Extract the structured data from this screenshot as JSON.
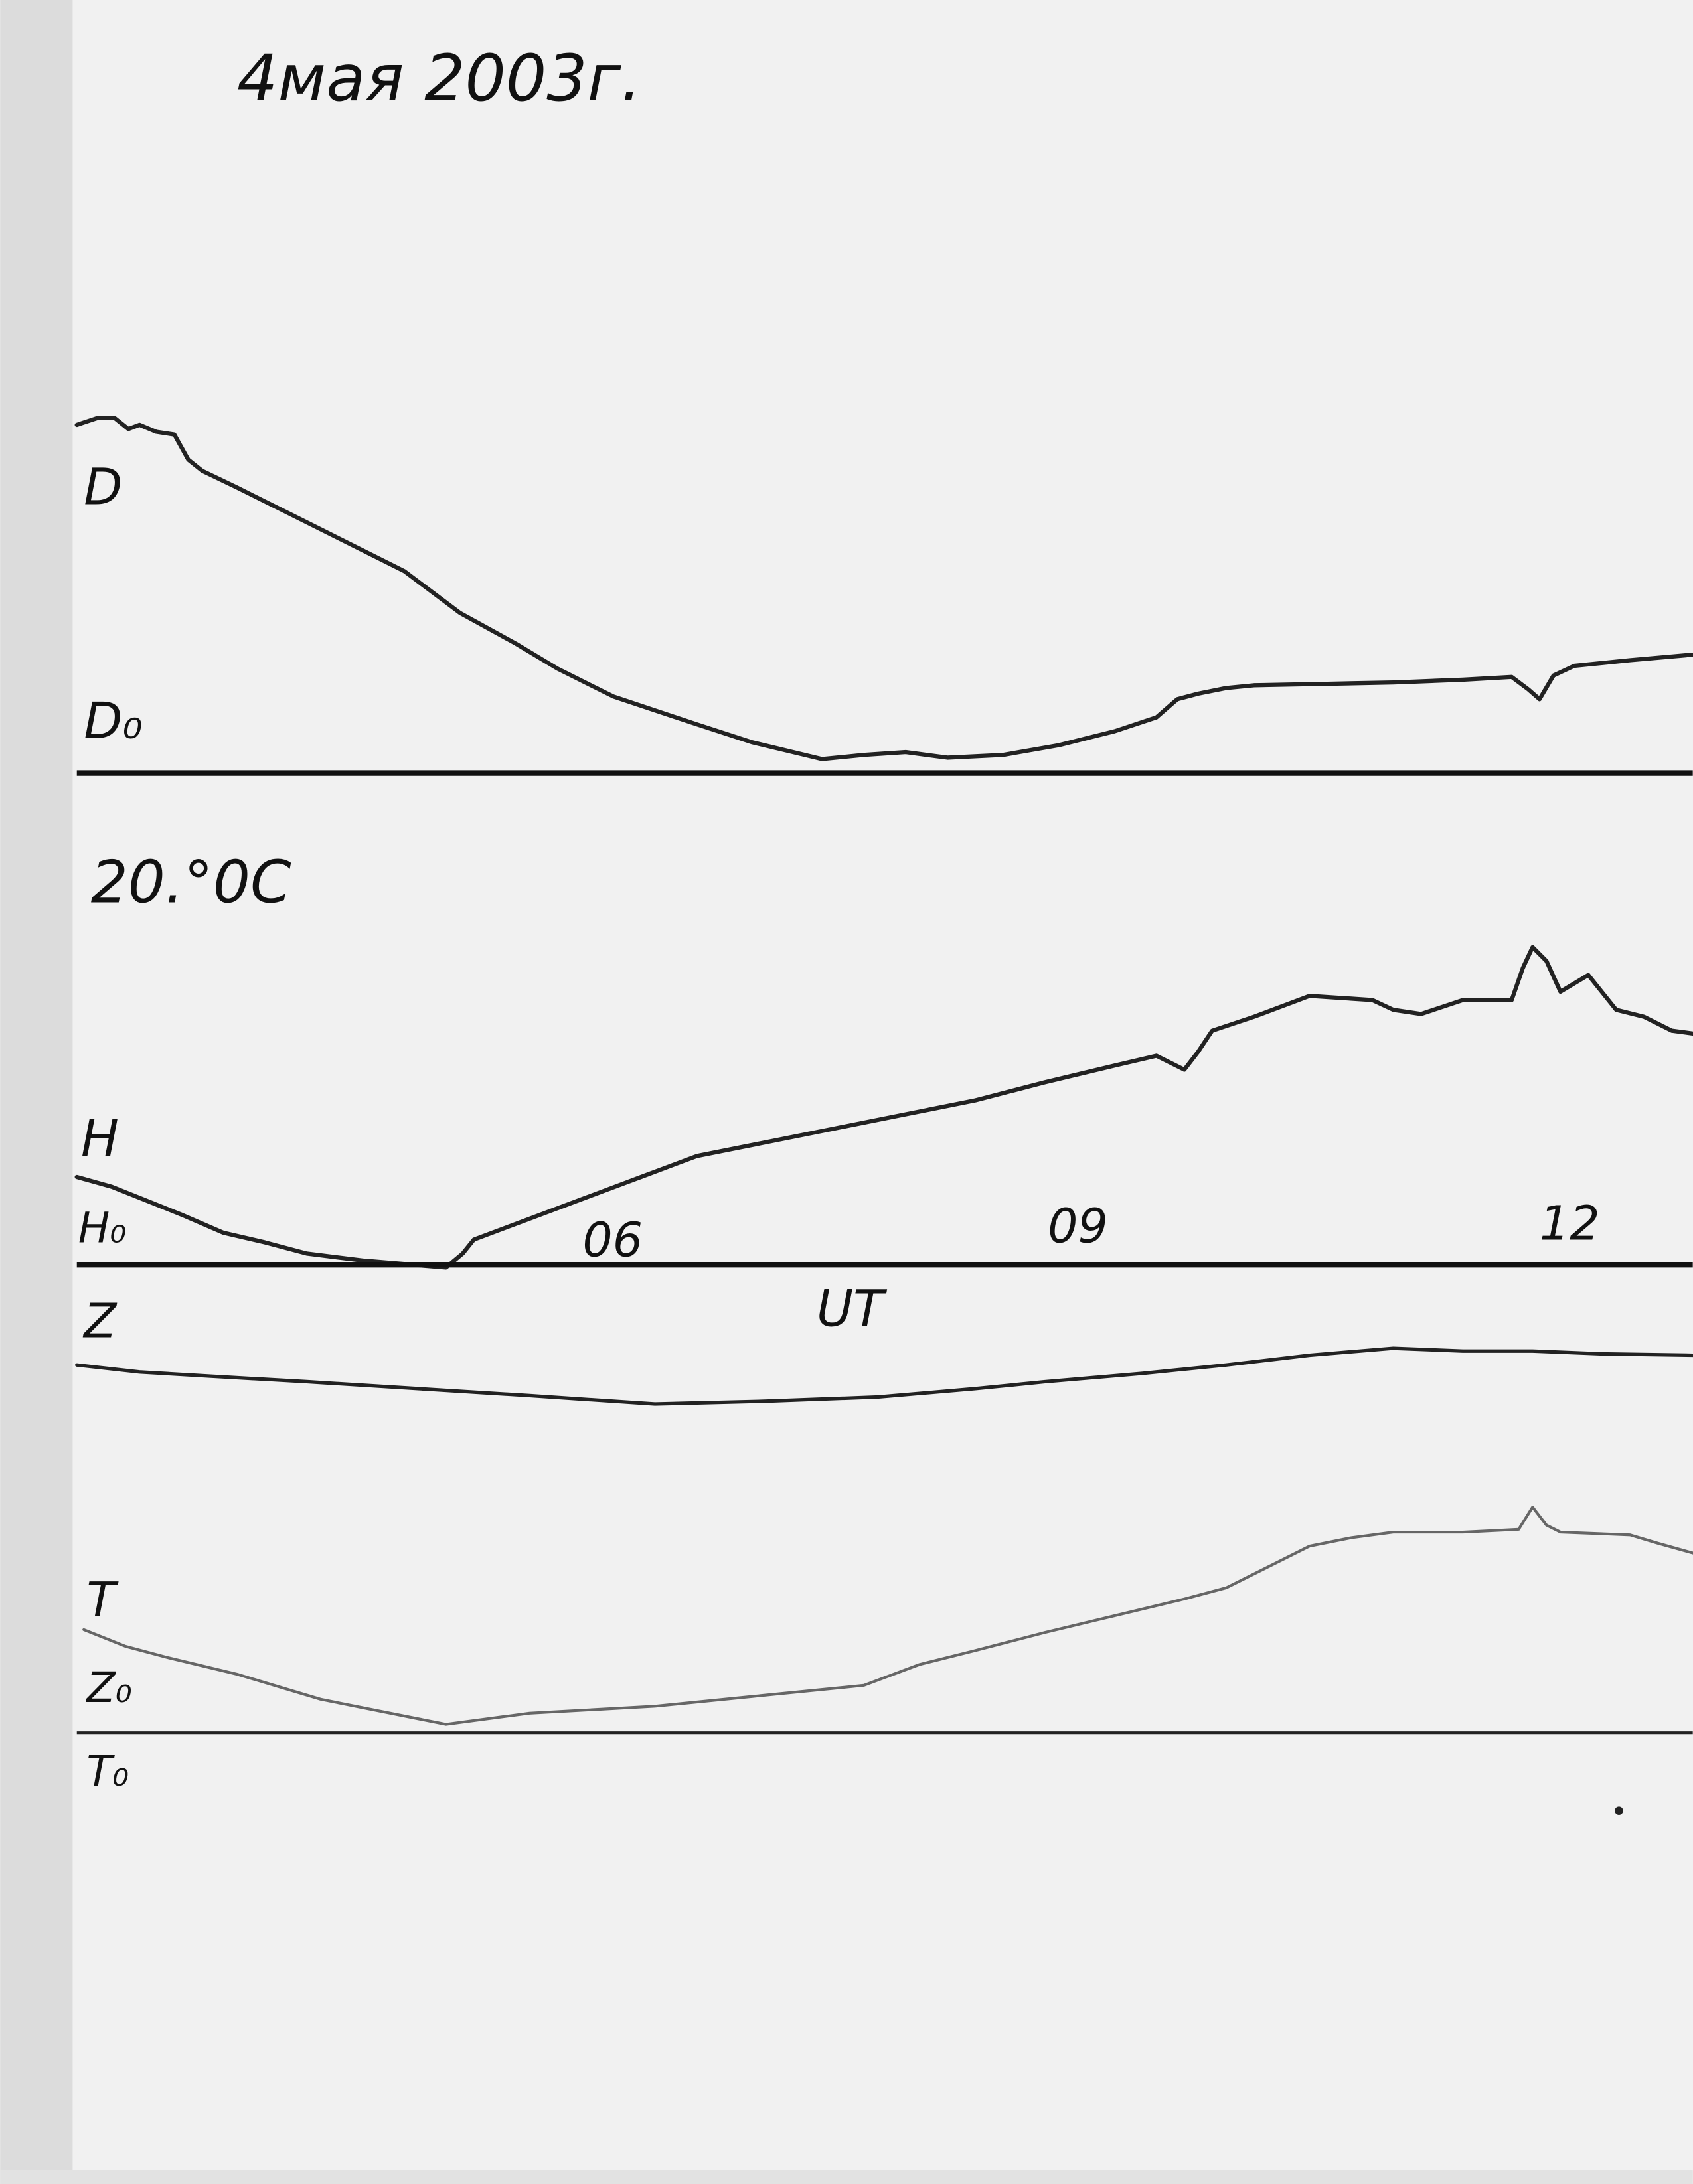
{
  "header": {
    "title": "4мая 2003г."
  },
  "labels": {
    "d": "D",
    "d0": "D₀",
    "temperature": "20.°0C",
    "h": "H",
    "h0": "H₀",
    "ut": "UT",
    "z": "Z",
    "t": "T",
    "z0": "Z₀",
    "t0": "T₀"
  },
  "time_ticks": [
    "06",
    "09",
    "12"
  ]
}
